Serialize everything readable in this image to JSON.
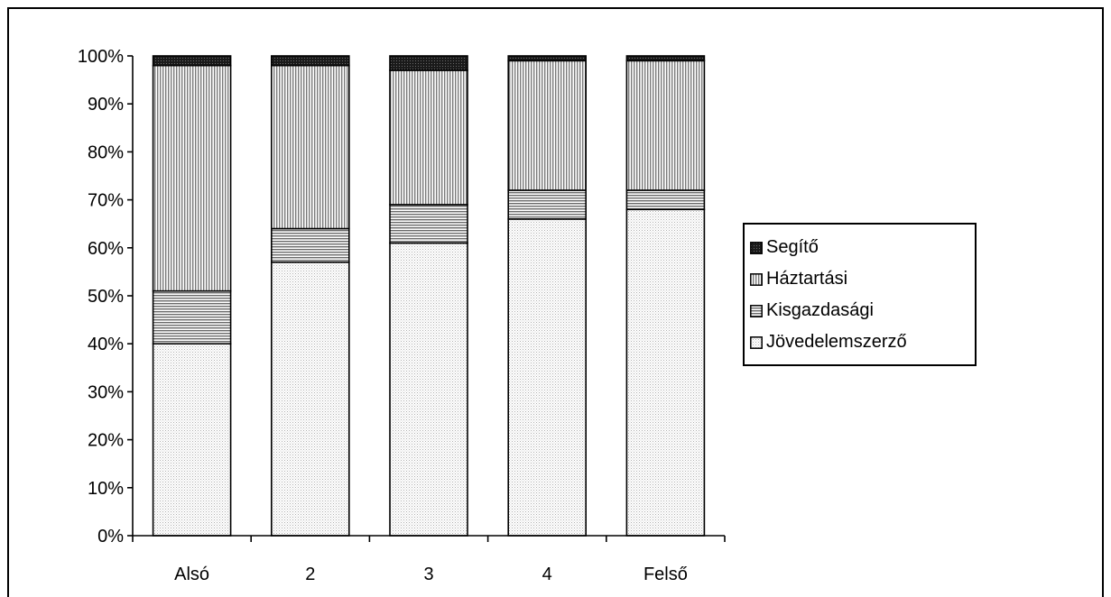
{
  "chart_data": {
    "type": "bar",
    "stacked": true,
    "percent": true,
    "categories": [
      "Alsó",
      "2",
      "3",
      "4",
      "Felső"
    ],
    "series": [
      {
        "name": "Jövedelemszerző",
        "values": [
          40,
          57,
          61,
          66,
          68
        ],
        "fill": "dots",
        "color": "#f2f2f2"
      },
      {
        "name": "Kisgazdasági",
        "values": [
          11,
          7,
          8,
          6,
          4
        ],
        "fill": "hlines",
        "color": "#9a9a9a"
      },
      {
        "name": "Háztartási",
        "values": [
          47,
          34,
          28,
          27,
          27
        ],
        "fill": "vlines",
        "color": "#c8c8c8"
      },
      {
        "name": "Segítő",
        "values": [
          2,
          2,
          3,
          1,
          1
        ],
        "fill": "dark",
        "color": "#222222"
      }
    ],
    "yticks": [
      "0%",
      "10%",
      "20%",
      "30%",
      "40%",
      "50%",
      "60%",
      "70%",
      "80%",
      "90%",
      "100%"
    ],
    "ylim": [
      0,
      100
    ],
    "title": "",
    "xlabel": "",
    "ylabel": "",
    "grid": false,
    "legend": {
      "position": "right",
      "order": [
        "Segítő",
        "Háztartási",
        "Kisgazdasági",
        "Jövedelemszerző"
      ]
    }
  }
}
